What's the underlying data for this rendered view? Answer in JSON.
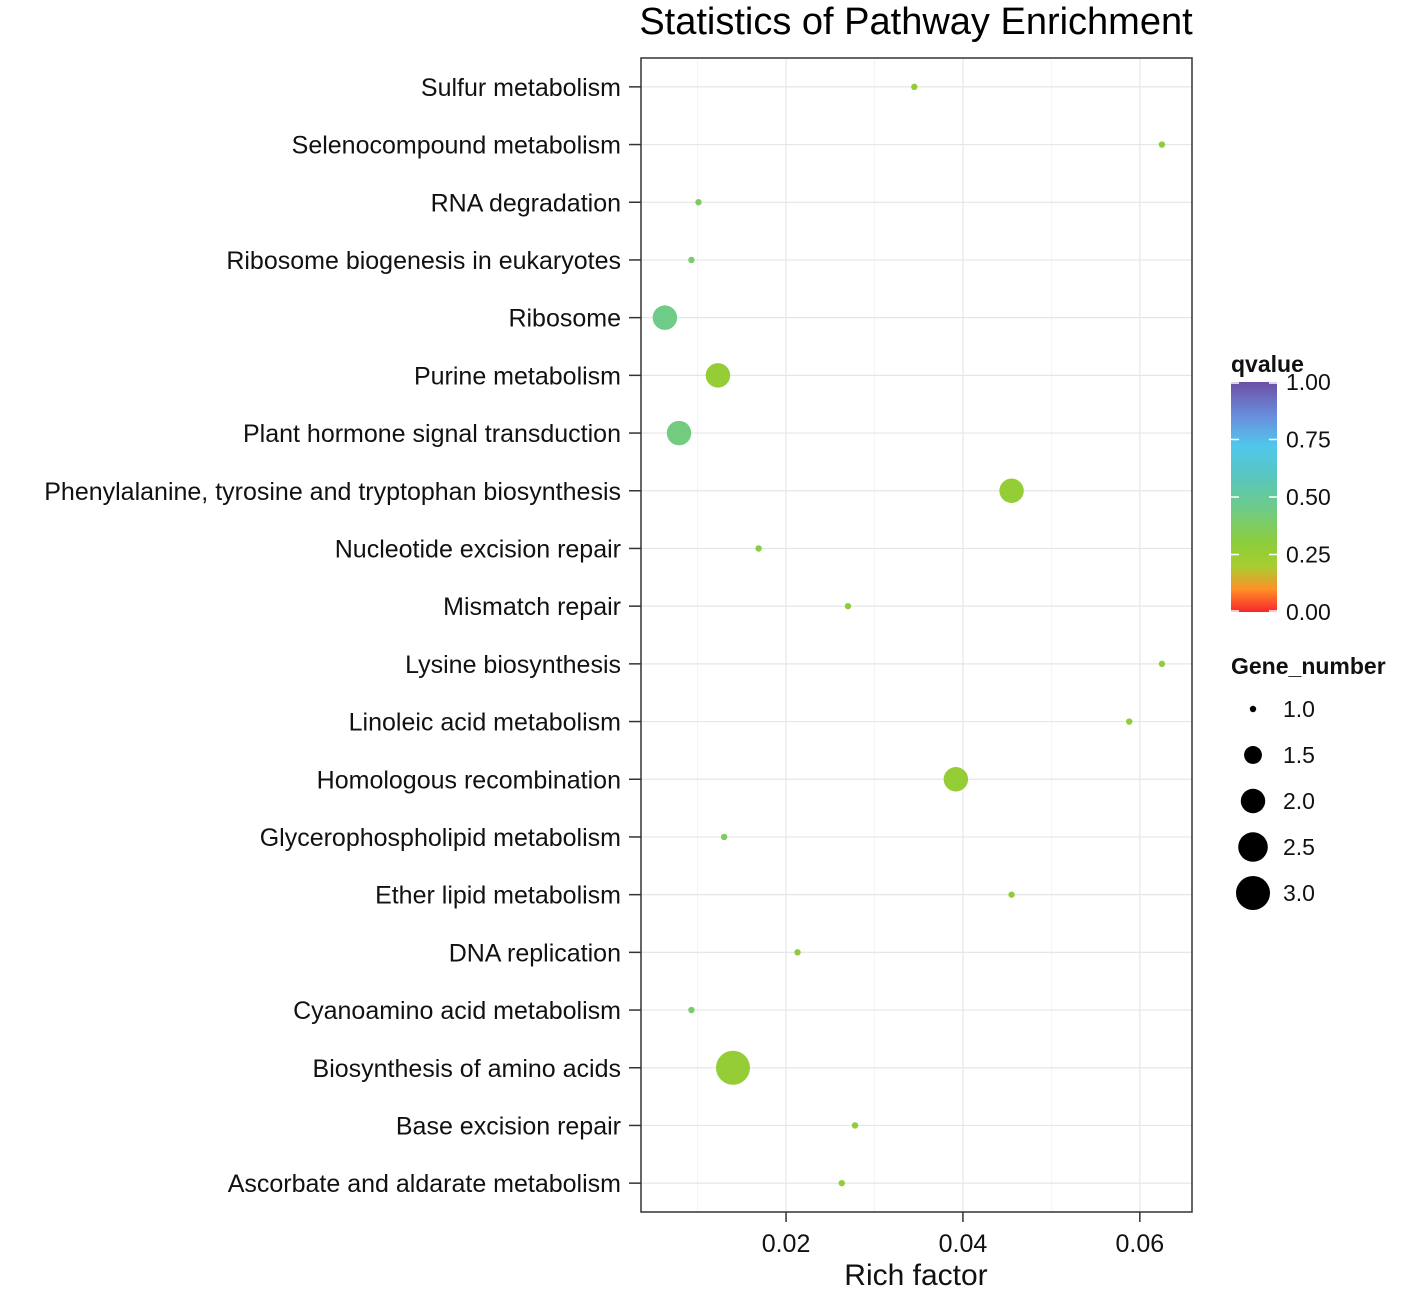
{
  "chart_data": {
    "type": "scatter",
    "title": "Statistics of Pathway Enrichment",
    "xlabel": "Rich factor",
    "ylabel": "",
    "xlim": [
      0.0036,
      0.0659
    ],
    "xticks": [
      {
        "value": 0.02,
        "label": "0.02"
      },
      {
        "value": 0.04,
        "label": "0.04"
      },
      {
        "value": 0.06,
        "label": "0.06"
      }
    ],
    "grid": true,
    "points": [
      {
        "pathway": "Sulfur metabolism",
        "rich_factor": 0.0345,
        "qvalue": 0.28,
        "gene_number": 1
      },
      {
        "pathway": "Selenocompound metabolism",
        "rich_factor": 0.0625,
        "qvalue": 0.28,
        "gene_number": 1
      },
      {
        "pathway": "RNA degradation",
        "rich_factor": 0.0101,
        "qvalue": 0.38,
        "gene_number": 1
      },
      {
        "pathway": "Ribosome biogenesis in eukaryotes",
        "rich_factor": 0.0093,
        "qvalue": 0.4,
        "gene_number": 1
      },
      {
        "pathway": "Ribosome",
        "rich_factor": 0.0063,
        "qvalue": 0.45,
        "gene_number": 2
      },
      {
        "pathway": "Purine metabolism",
        "rich_factor": 0.0123,
        "qvalue": 0.27,
        "gene_number": 2
      },
      {
        "pathway": "Plant hormone signal transduction",
        "rich_factor": 0.0079,
        "qvalue": 0.43,
        "gene_number": 2
      },
      {
        "pathway": "Phenylalanine, tyrosine and tryptophan biosynthesis",
        "rich_factor": 0.0455,
        "qvalue": 0.27,
        "gene_number": 2
      },
      {
        "pathway": "Nucleotide excision repair",
        "rich_factor": 0.0169,
        "qvalue": 0.33,
        "gene_number": 1
      },
      {
        "pathway": "Mismatch repair",
        "rich_factor": 0.027,
        "qvalue": 0.3,
        "gene_number": 1
      },
      {
        "pathway": "Lysine biosynthesis",
        "rich_factor": 0.0625,
        "qvalue": 0.28,
        "gene_number": 1
      },
      {
        "pathway": "Linoleic acid metabolism",
        "rich_factor": 0.0588,
        "qvalue": 0.28,
        "gene_number": 1
      },
      {
        "pathway": "Homologous recombination",
        "rich_factor": 0.0392,
        "qvalue": 0.27,
        "gene_number": 2
      },
      {
        "pathway": "Glycerophospholipid metabolism",
        "rich_factor": 0.013,
        "qvalue": 0.38,
        "gene_number": 1
      },
      {
        "pathway": "Ether lipid metabolism",
        "rich_factor": 0.0455,
        "qvalue": 0.28,
        "gene_number": 1
      },
      {
        "pathway": "DNA replication",
        "rich_factor": 0.0213,
        "qvalue": 0.3,
        "gene_number": 1
      },
      {
        "pathway": "Cyanoamino acid metabolism",
        "rich_factor": 0.0093,
        "qvalue": 0.4,
        "gene_number": 1
      },
      {
        "pathway": "Biosynthesis of amino acids",
        "rich_factor": 0.014,
        "qvalue": 0.27,
        "gene_number": 3
      },
      {
        "pathway": "Base excision repair",
        "rich_factor": 0.0278,
        "qvalue": 0.28,
        "gene_number": 1
      },
      {
        "pathway": "Ascorbate and aldarate metabolism",
        "rich_factor": 0.0263,
        "qvalue": 0.28,
        "gene_number": 1
      }
    ],
    "color_legend": {
      "title": "qvalue",
      "ticks": [
        {
          "value": 1.0,
          "label": "1.00"
        },
        {
          "value": 0.75,
          "label": "0.75"
        },
        {
          "value": 0.5,
          "label": "0.50"
        },
        {
          "value": 0.25,
          "label": "0.25"
        },
        {
          "value": 0.0,
          "label": "0.00"
        }
      ],
      "gradient": [
        {
          "value": 0.0,
          "color": "#f8262b"
        },
        {
          "value": 0.1,
          "color": "#ff9126"
        },
        {
          "value": 0.2,
          "color": "#a6ce30"
        },
        {
          "value": 0.3,
          "color": "#8dcd3a"
        },
        {
          "value": 0.45,
          "color": "#6ecb88"
        },
        {
          "value": 0.6,
          "color": "#58c6c3"
        },
        {
          "value": 0.72,
          "color": "#50c8eb"
        },
        {
          "value": 0.85,
          "color": "#6a8fde"
        },
        {
          "value": 1.0,
          "color": "#6c4fa6"
        }
      ]
    },
    "size_legend": {
      "title": "Gene_number",
      "items": [
        {
          "value": 1.0,
          "label": "1.0"
        },
        {
          "value": 1.5,
          "label": "1.5"
        },
        {
          "value": 2.0,
          "label": "2.0"
        },
        {
          "value": 2.5,
          "label": "2.5"
        },
        {
          "value": 3.0,
          "label": "3.0"
        }
      ]
    }
  }
}
